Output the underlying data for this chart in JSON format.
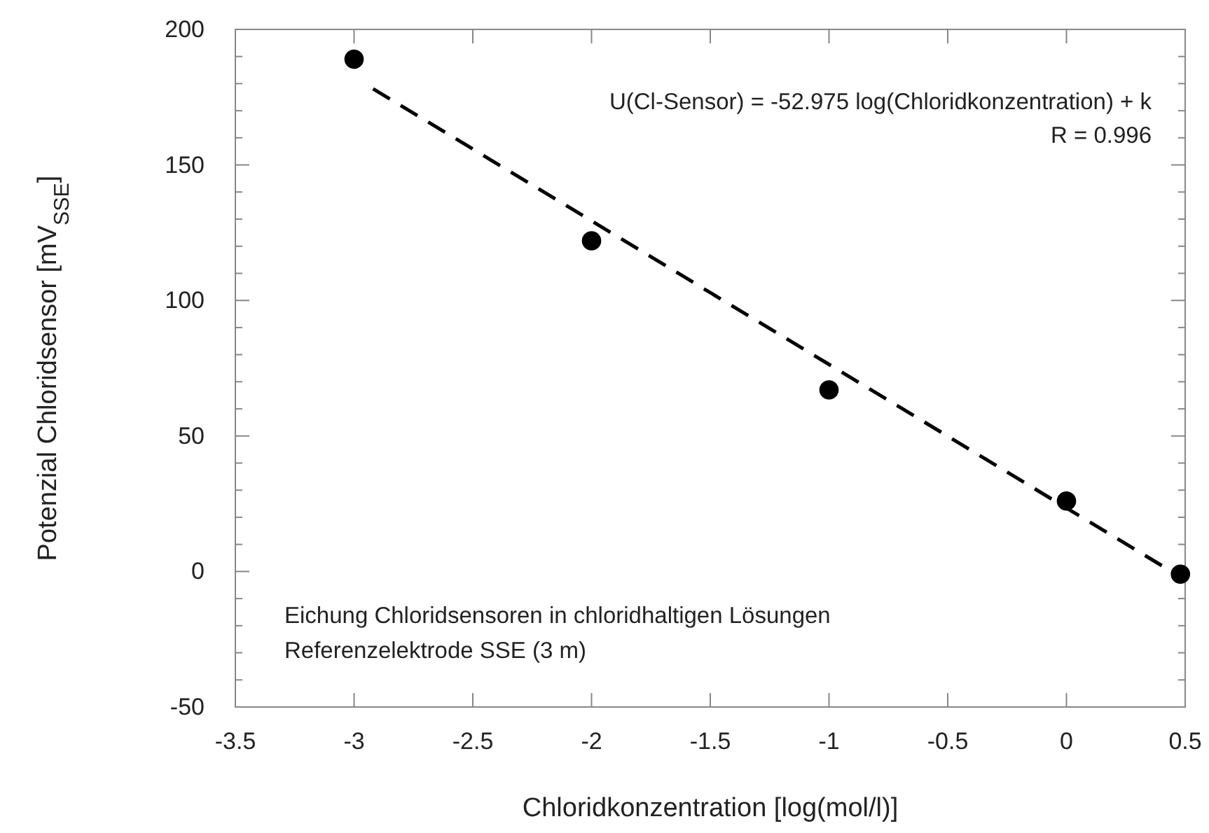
{
  "chart_data": {
    "type": "scatter",
    "xlabel": "Chloridkonzentration [log(mol/l)]",
    "ylabel": "Potenzial Chloridsensor [mV$_{SSE}$]",
    "xlim": [
      -3.5,
      0.5
    ],
    "xticks": [
      -3.5,
      -3,
      -2.5,
      -2,
      -1.5,
      -1,
      -0.5,
      0,
      0.5
    ],
    "ylim": [
      -50,
      200
    ],
    "yticks": [
      -50,
      {
        "value": -40,
        "label": null
      },
      {
        "value": -30,
        "label": null
      },
      {
        "value": -20,
        "label": null
      },
      {
        "value": -10,
        "label": null
      },
      0,
      {
        "value": 10,
        "label": null
      },
      {
        "value": 20,
        "label": null
      },
      {
        "value": 30,
        "label": null
      },
      {
        "value": 40,
        "label": null
      },
      50,
      {
        "value": 60,
        "label": null
      },
      {
        "value": 70,
        "label": null
      },
      {
        "value": 80,
        "label": null
      },
      {
        "value": 90,
        "label": null
      },
      100,
      {
        "value": 110,
        "label": null
      },
      {
        "value": 120,
        "label": null
      },
      {
        "value": 130,
        "label": null
      },
      {
        "value": 140,
        "label": null
      },
      150,
      {
        "value": 160,
        "label": null
      },
      {
        "value": 170,
        "label": null
      },
      {
        "value": 180,
        "label": null
      },
      {
        "value": 190,
        "label": null
      },
      200
    ],
    "series": [
      {
        "type": "scatter",
        "color": "#000000",
        "marker": "circle",
        "x": [
          -3,
          -2,
          -1,
          0,
          0.48
        ],
        "values": [
          189,
          122,
          67,
          26,
          -1
        ]
      },
      {
        "type": "line",
        "color": "#000000",
        "line_style": "dashed",
        "marker": "none",
        "x": [
          -2.92,
          0.45
        ],
        "values": [
          178.1,
          -0.4
        ]
      }
    ],
    "annotations": [
      "U(Cl-Sensor) = -52.975 log(Chloridkonzentration) + k",
      "R = 0.996",
      "Eichung Chloridsensoren in chloridhaltigen Lösungen",
      "Referenzelektrode SSE (3 m)"
    ],
    "grid": false
  }
}
